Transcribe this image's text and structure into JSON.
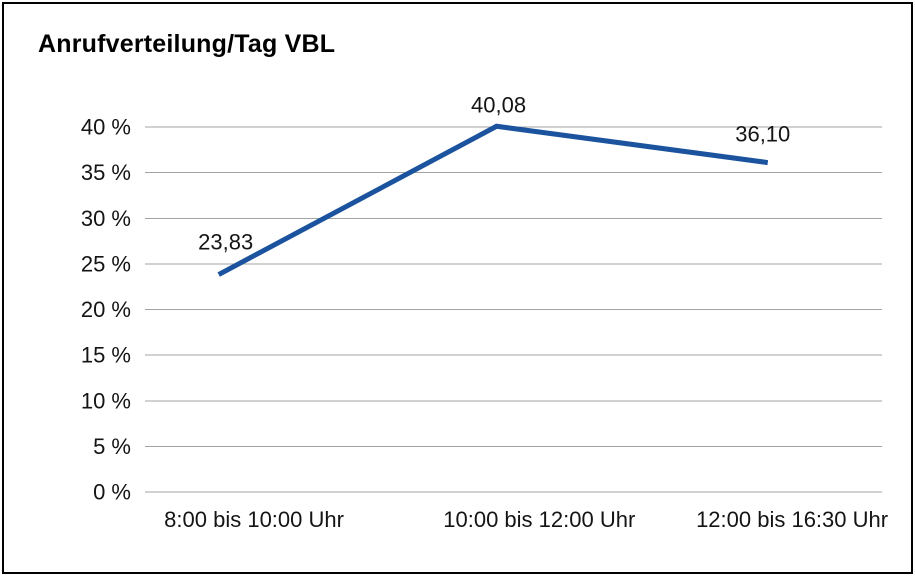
{
  "chart_data": {
    "type": "line",
    "title": "Anrufverteilung/Tag VBL",
    "categories": [
      "8:00 bis 10:00 Uhr",
      "10:00 bis 12:00 Uhr",
      "12:00 bis 16:30 Uhr"
    ],
    "values": [
      23.83,
      40.08,
      36.1
    ],
    "value_labels": [
      "23,83",
      "40,08",
      "36,10"
    ],
    "xlabel": "",
    "ylabel": "",
    "ylim": [
      0,
      40
    ],
    "ytick_step": 5,
    "ytick_labels": [
      "0 %",
      "5 %",
      "10 %",
      "15 %",
      "20 %",
      "25 %",
      "30 %",
      "35 %",
      "40 %"
    ],
    "grid": true,
    "legend_position": "none",
    "line_color": "#1b539e",
    "grid_color": "#a3a3a3",
    "text_color": "#141414"
  }
}
